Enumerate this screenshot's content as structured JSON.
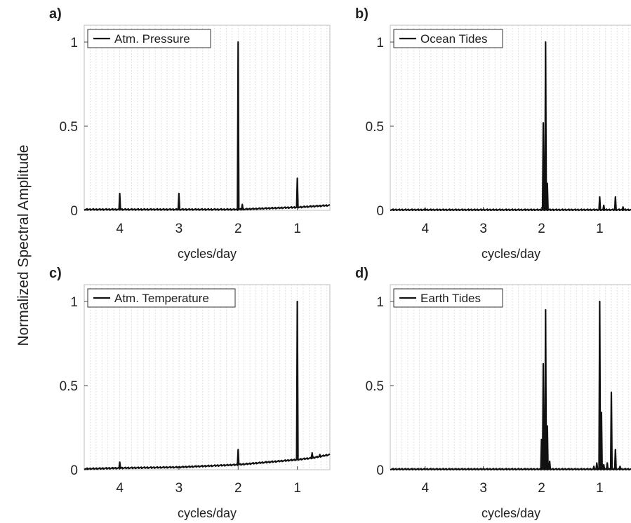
{
  "figure": {
    "ylabel": "Normalized Spectral Amplitude"
  },
  "chart_data": [
    {
      "type": "line",
      "panel": "a)",
      "legend": "Atm. Pressure",
      "xlabel": "cycles/day",
      "xlim": [
        4.6,
        0.45
      ],
      "ylim": [
        0,
        1.1
      ],
      "xticks": [
        4,
        3,
        2,
        1
      ],
      "yticks": [
        0,
        0.5,
        1
      ],
      "baseline": [
        [
          4.6,
          0.005
        ],
        [
          2.0,
          0.005
        ],
        [
          1.5,
          0.012
        ],
        [
          1.0,
          0.018
        ],
        [
          0.45,
          0.03
        ]
      ],
      "peaks": [
        {
          "x": 4.0,
          "y": 0.1
        },
        {
          "x": 3.0,
          "y": 0.1
        },
        {
          "x": 2.0,
          "y": 1.0
        },
        {
          "x": 1.93,
          "y": 0.035
        },
        {
          "x": 1.0,
          "y": 0.19
        }
      ]
    },
    {
      "type": "line",
      "panel": "b)",
      "legend": "Ocean Tides",
      "xlabel": "cycles/day",
      "xlim": [
        4.6,
        0.45
      ],
      "ylim": [
        0,
        1.1
      ],
      "xticks": [
        4,
        3,
        2,
        1
      ],
      "yticks": [
        0,
        0.5,
        1
      ],
      "baseline": [
        [
          4.6,
          0.003
        ],
        [
          0.45,
          0.003
        ]
      ],
      "peaks": [
        {
          "x": 4.0,
          "y": 0.008
        },
        {
          "x": 1.97,
          "y": 0.52
        },
        {
          "x": 1.93,
          "y": 1.0
        },
        {
          "x": 1.9,
          "y": 0.16
        },
        {
          "x": 1.0,
          "y": 0.08
        },
        {
          "x": 0.93,
          "y": 0.03
        },
        {
          "x": 0.73,
          "y": 0.08
        },
        {
          "x": 0.6,
          "y": 0.02
        }
      ]
    },
    {
      "type": "line",
      "panel": "c)",
      "legend": "Atm. Temperature",
      "xlabel": "cycles/day",
      "xlim": [
        4.6,
        0.45
      ],
      "ylim": [
        0,
        1.1
      ],
      "xticks": [
        4,
        3,
        2,
        1
      ],
      "yticks": [
        0,
        0.5,
        1
      ],
      "baseline": [
        [
          4.6,
          0.005
        ],
        [
          4.0,
          0.01
        ],
        [
          3.0,
          0.015
        ],
        [
          2.0,
          0.03
        ],
        [
          1.5,
          0.045
        ],
        [
          1.0,
          0.06
        ],
        [
          0.75,
          0.07
        ],
        [
          0.45,
          0.09
        ]
      ],
      "peaks": [
        {
          "x": 4.0,
          "y": 0.045
        },
        {
          "x": 2.0,
          "y": 0.12
        },
        {
          "x": 1.0,
          "y": 1.0
        },
        {
          "x": 0.75,
          "y": 0.1
        },
        {
          "x": 0.62,
          "y": 0.09
        }
      ]
    },
    {
      "type": "line",
      "panel": "d)",
      "legend": "Earth Tides",
      "xlabel": "cycles/day",
      "xlim": [
        4.6,
        0.45
      ],
      "ylim": [
        0,
        1.1
      ],
      "xticks": [
        4,
        3,
        2,
        1
      ],
      "yticks": [
        0,
        0.5,
        1
      ],
      "baseline": [
        [
          4.6,
          0.003
        ],
        [
          0.45,
          0.003
        ]
      ],
      "peaks": [
        {
          "x": 2.0,
          "y": 0.18
        },
        {
          "x": 1.97,
          "y": 0.63
        },
        {
          "x": 1.93,
          "y": 0.95
        },
        {
          "x": 1.9,
          "y": 0.26
        },
        {
          "x": 1.86,
          "y": 0.05
        },
        {
          "x": 1.1,
          "y": 0.02
        },
        {
          "x": 1.05,
          "y": 0.04
        },
        {
          "x": 1.0,
          "y": 1.0
        },
        {
          "x": 0.97,
          "y": 0.34
        },
        {
          "x": 0.93,
          "y": 0.03
        },
        {
          "x": 0.87,
          "y": 0.04
        },
        {
          "x": 0.8,
          "y": 0.46
        },
        {
          "x": 0.73,
          "y": 0.12
        },
        {
          "x": 0.65,
          "y": 0.02
        }
      ]
    }
  ]
}
